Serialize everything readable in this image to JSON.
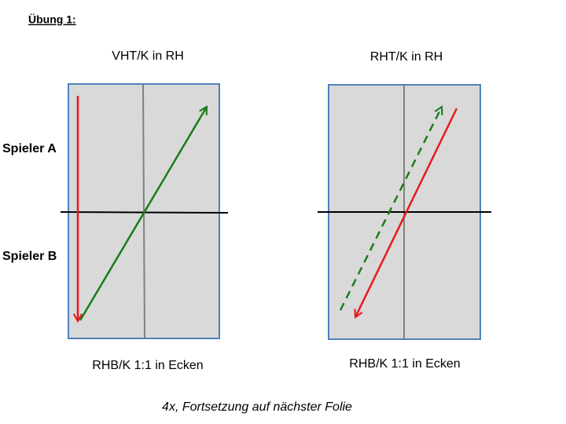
{
  "header": {
    "title": "Übung 1:"
  },
  "players": [
    "Spieler A",
    "Spieler B"
  ],
  "tables": [
    {
      "top": "VHT/K in RH",
      "bottom": "RHB/K 1:1 in Ecken"
    },
    {
      "top": "RHT/K in RH",
      "bottom": "RHB/K 1:1 in Ecken"
    }
  ],
  "footer": "4x, Fortsetzung auf nächster Folie"
}
